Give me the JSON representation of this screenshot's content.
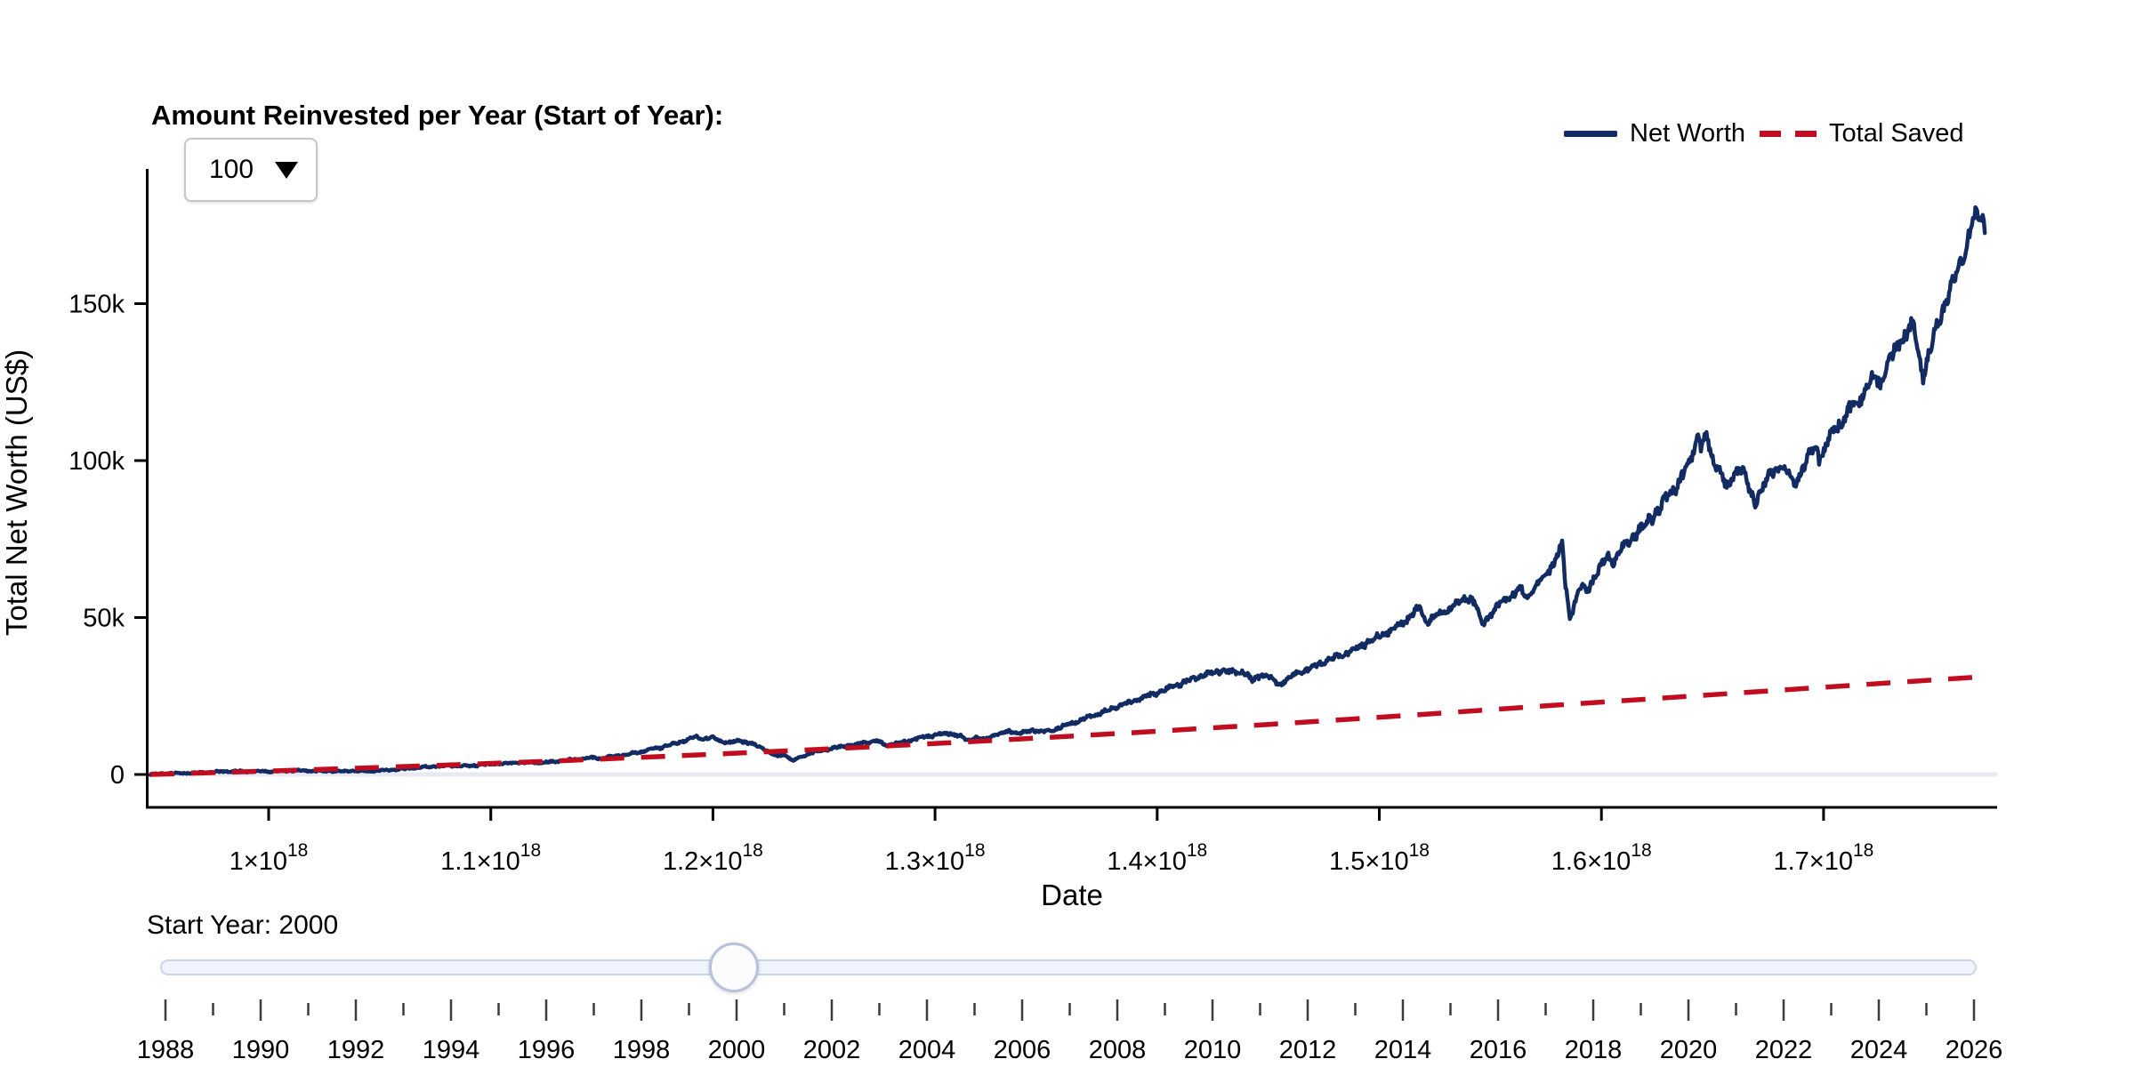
{
  "controls": {
    "reinvest_label": "Amount Reinvested per Year (Start of Year):",
    "reinvest_value": "100",
    "slider_label": "Start Year: 2000",
    "slider_value": 2000,
    "slider_min": 1988,
    "slider_max": 2026,
    "slider_year_labels": [
      "1988",
      "1990",
      "1992",
      "1994",
      "1996",
      "1998",
      "2000",
      "2002",
      "2004",
      "2006",
      "2008",
      "2010",
      "2012",
      "2014",
      "2016",
      "2018",
      "2020",
      "2022",
      "2024",
      "2026"
    ]
  },
  "legend": {
    "items": [
      {
        "label": "Net Worth",
        "color": "#122c63",
        "style": "solid"
      },
      {
        "label": "Total Saved",
        "color": "#c00d20",
        "style": "dashed"
      }
    ]
  },
  "chart_data": {
    "type": "line",
    "xlabel": "Date",
    "ylabel": "Total Net Worth (US$)",
    "x_axis": {
      "unit": "ns since epoch",
      "ticks": [
        {
          "value_e18": 1.0,
          "label": "1×10^18"
        },
        {
          "value_e18": 1.1,
          "label": "1.1×10^18"
        },
        {
          "value_e18": 1.2,
          "label": "1.2×10^18"
        },
        {
          "value_e18": 1.3,
          "label": "1.3×10^18"
        },
        {
          "value_e18": 1.4,
          "label": "1.4×10^18"
        },
        {
          "value_e18": 1.5,
          "label": "1.5×10^18"
        },
        {
          "value_e18": 1.6,
          "label": "1.6×10^18"
        },
        {
          "value_e18": 1.7,
          "label": "1.7×10^18"
        }
      ]
    },
    "y_axis": {
      "ticks": [
        {
          "value_k": 0,
          "label": "0"
        },
        {
          "value_k": 50,
          "label": "50k"
        },
        {
          "value_k": 100,
          "label": "100k"
        },
        {
          "value_k": 150,
          "label": "150k"
        }
      ]
    },
    "series": [
      {
        "name": "Net Worth",
        "color": "#122c63",
        "style": "solid",
        "points_year_value_k": [
          [
            2000.0,
            0.05
          ],
          [
            2000.2,
            0.3
          ],
          [
            2000.4,
            0.5
          ],
          [
            2000.6,
            0.45
          ],
          [
            2000.8,
            0.7
          ],
          [
            2001.0,
            0.9
          ],
          [
            2001.2,
            1.05
          ],
          [
            2001.4,
            0.9
          ],
          [
            2001.6,
            1.1
          ],
          [
            2001.72,
            0.85
          ],
          [
            2001.9,
            1.15
          ],
          [
            2002.1,
            1.3
          ],
          [
            2002.3,
            1.15
          ],
          [
            2002.55,
            1.05
          ],
          [
            2002.75,
            0.95
          ],
          [
            2002.9,
            1.15
          ],
          [
            2003.1,
            1.05
          ],
          [
            2003.3,
            1.3
          ],
          [
            2003.5,
            1.6
          ],
          [
            2003.7,
            1.95
          ],
          [
            2003.9,
            2.3
          ],
          [
            2004.1,
            2.6
          ],
          [
            2004.3,
            2.8
          ],
          [
            2004.5,
            2.7
          ],
          [
            2004.7,
            3.0
          ],
          [
            2004.9,
            3.3
          ],
          [
            2005.1,
            3.6
          ],
          [
            2005.3,
            3.8
          ],
          [
            2005.5,
            3.7
          ],
          [
            2005.7,
            4.0
          ],
          [
            2005.9,
            4.4
          ],
          [
            2006.1,
            4.9
          ],
          [
            2006.3,
            5.3
          ],
          [
            2006.45,
            5.1
          ],
          [
            2006.6,
            5.7
          ],
          [
            2006.8,
            6.4
          ],
          [
            2007.0,
            7.2
          ],
          [
            2007.2,
            8.2
          ],
          [
            2007.35,
            9.0
          ],
          [
            2007.5,
            9.9
          ],
          [
            2007.65,
            11.0
          ],
          [
            2007.78,
            12.0
          ],
          [
            2007.88,
            11.3
          ],
          [
            2008.0,
            11.8
          ],
          [
            2008.12,
            10.7
          ],
          [
            2008.25,
            10.1
          ],
          [
            2008.4,
            10.8
          ],
          [
            2008.55,
            10.0
          ],
          [
            2008.7,
            8.8
          ],
          [
            2008.82,
            7.2
          ],
          [
            2008.95,
            5.8
          ],
          [
            2009.05,
            6.4
          ],
          [
            2009.17,
            4.4
          ],
          [
            2009.3,
            5.8
          ],
          [
            2009.45,
            7.0
          ],
          [
            2009.6,
            7.8
          ],
          [
            2009.8,
            8.6
          ],
          [
            2010.0,
            9.4
          ],
          [
            2010.2,
            10.2
          ],
          [
            2010.35,
            10.8
          ],
          [
            2010.5,
            9.4
          ],
          [
            2010.65,
            9.9
          ],
          [
            2010.85,
            11.0
          ],
          [
            2011.05,
            12.0
          ],
          [
            2011.25,
            12.8
          ],
          [
            2011.4,
            13.2
          ],
          [
            2011.55,
            12.2
          ],
          [
            2011.65,
            10.9
          ],
          [
            2011.78,
            11.7
          ],
          [
            2011.88,
            11.1
          ],
          [
            2012.05,
            12.6
          ],
          [
            2012.25,
            13.8
          ],
          [
            2012.4,
            13.2
          ],
          [
            2012.6,
            14.1
          ],
          [
            2012.75,
            13.6
          ],
          [
            2012.95,
            14.8
          ],
          [
            2013.15,
            16.4
          ],
          [
            2013.35,
            18.0
          ],
          [
            2013.55,
            19.6
          ],
          [
            2013.75,
            21.2
          ],
          [
            2013.95,
            22.8
          ],
          [
            2014.15,
            24.4
          ],
          [
            2014.35,
            26.0
          ],
          [
            2014.55,
            27.6
          ],
          [
            2014.7,
            29.0
          ],
          [
            2014.85,
            30.2
          ],
          [
            2015.0,
            31.4
          ],
          [
            2015.15,
            32.4
          ],
          [
            2015.3,
            33.2
          ],
          [
            2015.45,
            32.4
          ],
          [
            2015.6,
            33.0
          ],
          [
            2015.72,
            29.6
          ],
          [
            2015.85,
            31.8
          ],
          [
            2016.0,
            30.6
          ],
          [
            2016.1,
            28.4
          ],
          [
            2016.25,
            31.0
          ],
          [
            2016.4,
            32.6
          ],
          [
            2016.55,
            34.0
          ],
          [
            2016.7,
            35.4
          ],
          [
            2016.9,
            37.2
          ],
          [
            2017.1,
            39.2
          ],
          [
            2017.3,
            41.4
          ],
          [
            2017.5,
            43.6
          ],
          [
            2017.7,
            46.0
          ],
          [
            2017.9,
            48.8
          ],
          [
            2018.05,
            51.8
          ],
          [
            2018.12,
            53.4
          ],
          [
            2018.2,
            48.4
          ],
          [
            2018.32,
            50.4
          ],
          [
            2018.45,
            51.8
          ],
          [
            2018.6,
            53.6
          ],
          [
            2018.72,
            55.4
          ],
          [
            2018.82,
            56.6
          ],
          [
            2018.9,
            54.0
          ],
          [
            2019.0,
            47.8
          ],
          [
            2019.12,
            51.4
          ],
          [
            2019.25,
            54.2
          ],
          [
            2019.4,
            56.8
          ],
          [
            2019.55,
            58.8
          ],
          [
            2019.63,
            56.4
          ],
          [
            2019.75,
            60.0
          ],
          [
            2019.9,
            63.6
          ],
          [
            2020.0,
            66.8
          ],
          [
            2020.08,
            70.0
          ],
          [
            2020.14,
            73.5
          ],
          [
            2020.19,
            60.0
          ],
          [
            2020.25,
            49.5
          ],
          [
            2020.32,
            55.0
          ],
          [
            2020.42,
            60.0
          ],
          [
            2020.5,
            58.5
          ],
          [
            2020.6,
            63.0
          ],
          [
            2020.72,
            67.0
          ],
          [
            2020.8,
            69.5
          ],
          [
            2020.87,
            67.5
          ],
          [
            2021.0,
            72.0
          ],
          [
            2021.12,
            75.0
          ],
          [
            2021.25,
            78.0
          ],
          [
            2021.4,
            81.5
          ],
          [
            2021.5,
            84.0
          ],
          [
            2021.62,
            87.5
          ],
          [
            2021.75,
            91.5
          ],
          [
            2021.85,
            95.0
          ],
          [
            2021.95,
            99.5
          ],
          [
            2022.02,
            104.0
          ],
          [
            2022.08,
            108.0
          ],
          [
            2022.12,
            104.5
          ],
          [
            2022.2,
            107.0
          ],
          [
            2022.3,
            100.5
          ],
          [
            2022.4,
            96.0
          ],
          [
            2022.5,
            91.0
          ],
          [
            2022.58,
            95.5
          ],
          [
            2022.68,
            99.0
          ],
          [
            2022.78,
            92.5
          ],
          [
            2022.88,
            86.5
          ],
          [
            2022.95,
            89.5
          ],
          [
            2023.05,
            93.5
          ],
          [
            2023.15,
            96.5
          ],
          [
            2023.25,
            99.0
          ],
          [
            2023.35,
            96.0
          ],
          [
            2023.45,
            92.5
          ],
          [
            2023.55,
            97.0
          ],
          [
            2023.65,
            101.0
          ],
          [
            2023.75,
            104.0
          ],
          [
            2023.82,
            101.0
          ],
          [
            2023.9,
            104.5
          ],
          [
            2024.0,
            108.5
          ],
          [
            2024.1,
            112.0
          ],
          [
            2024.2,
            115.0
          ],
          [
            2024.3,
            117.5
          ],
          [
            2024.42,
            121.0
          ],
          [
            2024.52,
            124.5
          ],
          [
            2024.6,
            127.0
          ],
          [
            2024.68,
            124.0
          ],
          [
            2024.78,
            130.0
          ],
          [
            2024.88,
            134.5
          ],
          [
            2024.96,
            138.0
          ],
          [
            2025.08,
            141.5
          ],
          [
            2025.16,
            143.5
          ],
          [
            2025.22,
            134.0
          ],
          [
            2025.29,
            126.5
          ],
          [
            2025.38,
            134.5
          ],
          [
            2025.46,
            140.5
          ],
          [
            2025.56,
            148.0
          ],
          [
            2025.66,
            153.5
          ],
          [
            2025.76,
            158.5
          ],
          [
            2025.86,
            165.5
          ],
          [
            2025.94,
            171.5
          ],
          [
            2026.0,
            175.5
          ],
          [
            2026.06,
            179.0
          ],
          [
            2026.1,
            176.5
          ],
          [
            2026.14,
            178.0
          ],
          [
            2026.17,
            172.5
          ]
        ]
      },
      {
        "name": "Total Saved",
        "color": "#c00d20",
        "style": "dashed",
        "points_year_value_k": [
          [
            2000.0,
            0.0
          ],
          [
            2002.0,
            1.3
          ],
          [
            2004.0,
            2.8
          ],
          [
            2006.0,
            4.5
          ],
          [
            2008.0,
            6.4
          ],
          [
            2010.0,
            8.5
          ],
          [
            2012.0,
            10.8
          ],
          [
            2014.0,
            13.3
          ],
          [
            2016.0,
            16.0
          ],
          [
            2018.0,
            18.9
          ],
          [
            2020.0,
            22.0
          ],
          [
            2022.0,
            25.0
          ],
          [
            2024.0,
            28.0
          ],
          [
            2026.17,
            31.2
          ]
        ]
      }
    ]
  }
}
